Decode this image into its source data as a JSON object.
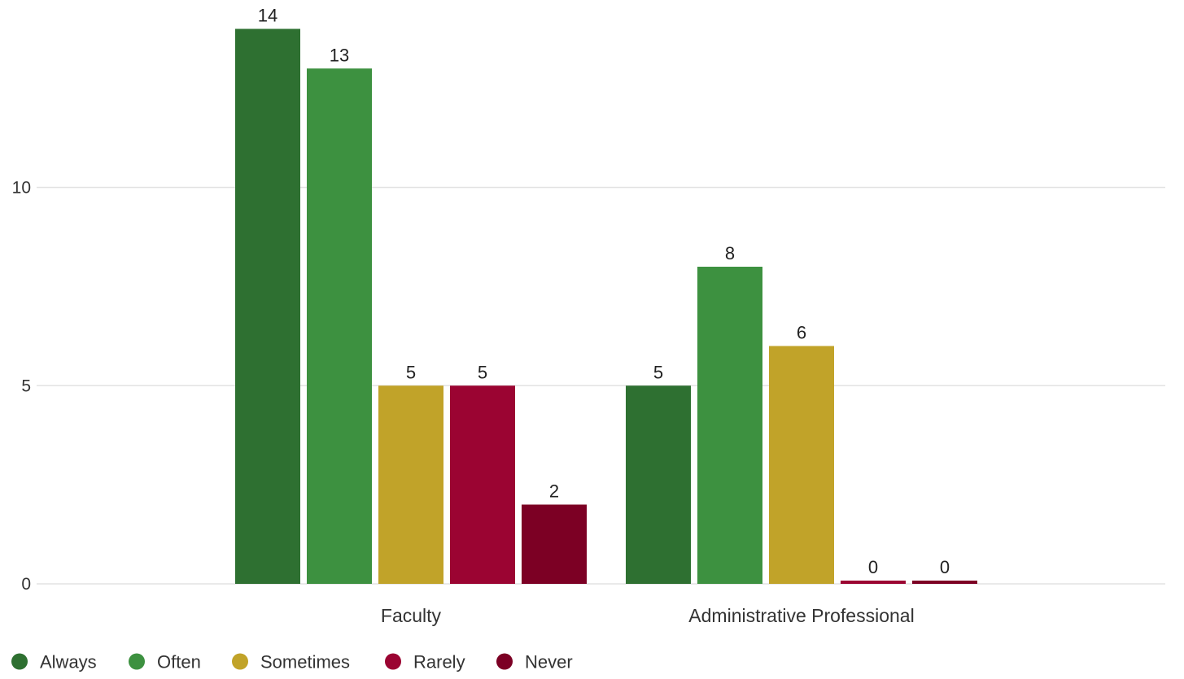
{
  "chart_data": {
    "type": "bar",
    "categories": [
      "Faculty",
      "Administrative Professional"
    ],
    "series": [
      {
        "name": "Always",
        "values": [
          14,
          5
        ],
        "color": "#2e7031"
      },
      {
        "name": "Often",
        "values": [
          13,
          8
        ],
        "color": "#3d9140"
      },
      {
        "name": "Sometimes",
        "values": [
          5,
          6
        ],
        "color": "#c1a329"
      },
      {
        "name": "Rarely",
        "values": [
          5,
          0
        ],
        "color": "#9b0432"
      },
      {
        "name": "Never",
        "values": [
          2,
          0
        ],
        "color": "#7c0024"
      }
    ],
    "yticks": [
      0,
      5,
      10
    ],
    "ylim": [
      0,
      14
    ],
    "grid": true,
    "legend_position": "bottom-left",
    "show_data_labels": true
  }
}
